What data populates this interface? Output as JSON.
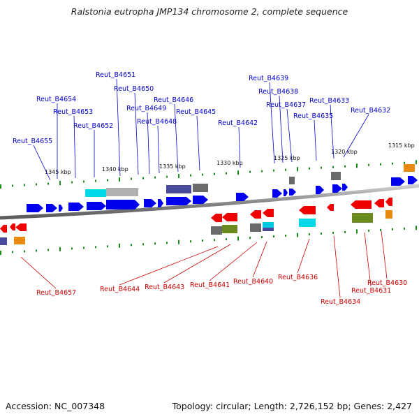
{
  "title": "Ralstonia eutropha JMP134 chromosome 2, complete sequence",
  "footer": {
    "accession": "Accession: NC_007348",
    "topology": "Topology: circular; Length: 2,726,152 bp; Genes: 2,427"
  },
  "colors": {
    "forward_cds": "#0000ee",
    "reverse_cds": "#ee0000",
    "forward_label": "#0000cc",
    "reverse_label": "#cc0000",
    "backbone": "#7a7a7a",
    "tick": "#1a8a1a"
  },
  "scale_labels": [
    "1345 kbp",
    "1340 kbp",
    "1335 kbp",
    "1330 kbp",
    "1325 kbp",
    "1320 kbp",
    "1315 kbp"
  ],
  "forward_genes": [
    "Reut_B4655",
    "Reut_B4654",
    "Reut_B4653",
    "Reut_B4652",
    "Reut_B4651",
    "Reut_B4650",
    "Reut_B4649",
    "Reut_B4648",
    "Reut_B4646",
    "Reut_B4645",
    "Reut_B4642",
    "Reut_B4639",
    "Reut_B4638",
    "Reut_B4637",
    "Reut_B4635",
    "Reut_B4633",
    "Reut_B4632"
  ],
  "reverse_genes": [
    "Reut_B4657",
    "Reut_B4644",
    "Reut_B4643",
    "Reut_B4641",
    "Reut_B4640",
    "Reut_B4636",
    "Reut_B4634",
    "Reut_B4631",
    "Reut_B4630"
  ]
}
